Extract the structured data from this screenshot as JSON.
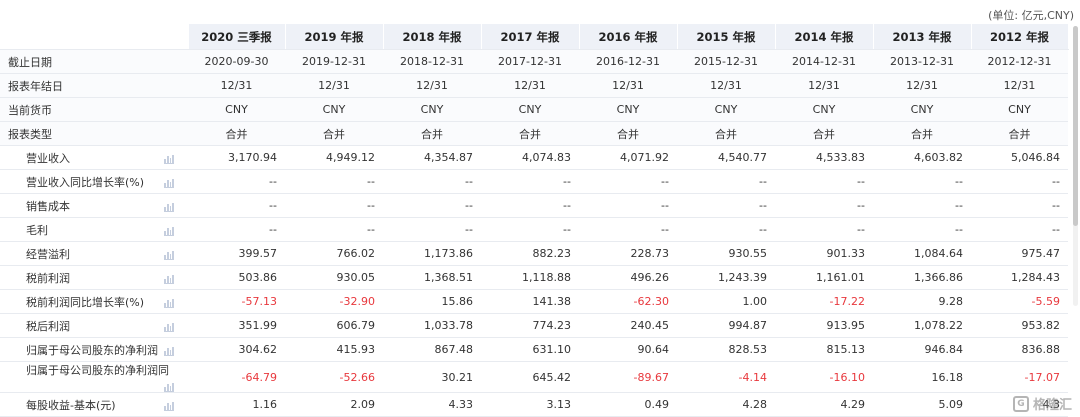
{
  "unit_label": "(单位: 亿元,CNY)",
  "columns": [
    "2020 三季报",
    "2019 年报",
    "2018 年报",
    "2017 年报",
    "2016 年报",
    "2015 年报",
    "2014 年报",
    "2013 年报",
    "2012 年报"
  ],
  "meta_rows": [
    {
      "label": "截止日期",
      "values": [
        "2020-09-30",
        "2019-12-31",
        "2018-12-31",
        "2017-12-31",
        "2016-12-31",
        "2015-12-31",
        "2014-12-31",
        "2013-12-31",
        "2012-12-31"
      ]
    },
    {
      "label": "报表年结日",
      "values": [
        "12/31",
        "12/31",
        "12/31",
        "12/31",
        "12/31",
        "12/31",
        "12/31",
        "12/31",
        "12/31"
      ]
    },
    {
      "label": "当前货币",
      "values": [
        "CNY",
        "CNY",
        "CNY",
        "CNY",
        "CNY",
        "CNY",
        "CNY",
        "CNY",
        "CNY"
      ]
    },
    {
      "label": "报表类型",
      "values": [
        "合并",
        "合并",
        "合并",
        "合并",
        "合并",
        "合并",
        "合并",
        "合并",
        "合并"
      ]
    }
  ],
  "data_rows": [
    {
      "label": "营业收入",
      "values": [
        "3,170.94",
        "4,949.12",
        "4,354.87",
        "4,074.83",
        "4,071.92",
        "4,540.77",
        "4,533.83",
        "4,603.82",
        "5,046.84"
      ]
    },
    {
      "label": "营业收入同比增长率(%)",
      "values": [
        "--",
        "--",
        "--",
        "--",
        "--",
        "--",
        "--",
        "--",
        "--"
      ]
    },
    {
      "label": "销售成本",
      "values": [
        "--",
        "--",
        "--",
        "--",
        "--",
        "--",
        "--",
        "--",
        "--"
      ]
    },
    {
      "label": "毛利",
      "values": [
        "--",
        "--",
        "--",
        "--",
        "--",
        "--",
        "--",
        "--",
        "--"
      ]
    },
    {
      "label": "经营溢利",
      "values": [
        "399.57",
        "766.02",
        "1,173.86",
        "882.23",
        "228.73",
        "930.55",
        "901.33",
        "1,084.64",
        "975.47"
      ]
    },
    {
      "label": "税前利润",
      "values": [
        "503.86",
        "930.05",
        "1,368.51",
        "1,118.88",
        "496.26",
        "1,243.39",
        "1,161.01",
        "1,366.86",
        "1,284.43"
      ]
    },
    {
      "label": "税前利润同比增长率(%)",
      "values": [
        "-57.13",
        "-32.90",
        "15.86",
        "141.38",
        "-62.30",
        "1.00",
        "-17.22",
        "9.28",
        "-5.59"
      ]
    },
    {
      "label": "税后利润",
      "values": [
        "351.99",
        "606.79",
        "1,033.78",
        "774.23",
        "240.45",
        "994.87",
        "913.95",
        "1,078.22",
        "953.82"
      ]
    },
    {
      "label": "归属于母公司股东的净利润",
      "values": [
        "304.62",
        "415.93",
        "867.48",
        "631.10",
        "90.64",
        "828.53",
        "815.13",
        "946.84",
        "836.88"
      ]
    },
    {
      "label": "归属于母公司股东的净利润同",
      "values": [
        "-64.79",
        "-52.66",
        "30.21",
        "645.42",
        "-89.67",
        "-4.14",
        "-16.10",
        "16.18",
        "-17.07"
      ]
    },
    {
      "label": "每股收益-基本(元)",
      "values": [
        "1.16",
        "2.09",
        "4.33",
        "3.13",
        "0.49",
        "4.28",
        "4.29",
        "5.09",
        "4.3"
      ]
    }
  ],
  "watermark": {
    "text": "格隆汇",
    "logo_letter": "G"
  },
  "colors": {
    "header_bg": "#eef1f7",
    "negative": "#e8383d",
    "border": "#e8ebf0"
  }
}
